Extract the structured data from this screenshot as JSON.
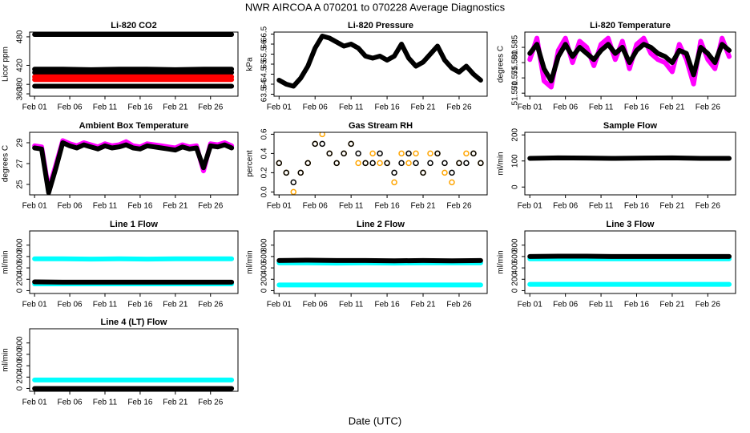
{
  "title": "NWR   AIRCOA A   070201 to 070228   Average Diagnostics",
  "x_label": "Date (UTC)",
  "chart_data": [
    {
      "type": "line",
      "title": "Li-820 CO2",
      "ylabel": "Licor ppm",
      "x": [
        1,
        5,
        9,
        13,
        17,
        21,
        25,
        29
      ],
      "xlim": [
        0.3,
        29.9
      ],
      "xticks": [
        {
          "value": 1,
          "label": "Feb 01"
        },
        {
          "value": 6,
          "label": "Feb 06"
        },
        {
          "value": 11,
          "label": "Feb 11"
        },
        {
          "value": 16,
          "label": "Feb 16"
        },
        {
          "value": 21,
          "label": "Feb 21"
        },
        {
          "value": 26,
          "label": "Feb 26"
        }
      ],
      "ylim": [
        355,
        490
      ],
      "yticks": [
        360,
        380,
        420,
        480
      ],
      "series": [
        {
          "color": "#000000",
          "values": [
            485,
            485,
            485,
            485,
            485,
            485,
            485,
            485
          ]
        },
        {
          "color": "#000000",
          "values": [
            412,
            412,
            411,
            412,
            412,
            411,
            412,
            412
          ]
        },
        {
          "color": "#000000",
          "values": [
            405,
            405,
            405,
            405,
            405,
            405,
            405,
            405
          ]
        },
        {
          "color": "#ff0000",
          "values": [
            396,
            396,
            396,
            396,
            396,
            396,
            396,
            396
          ]
        },
        {
          "color": "#ff0000",
          "values": [
            390,
            390,
            390,
            390,
            390,
            390,
            390,
            390
          ]
        },
        {
          "color": "#000000",
          "values": [
            376,
            376,
            376,
            376,
            376,
            376,
            376,
            376
          ]
        }
      ]
    },
    {
      "type": "line",
      "title": "Li-820 Pressure",
      "ylabel": "kPa",
      "x": [
        1,
        2,
        3,
        4,
        5,
        6,
        7,
        8,
        9,
        10,
        11,
        12,
        13,
        14,
        15,
        16,
        17,
        18,
        19,
        20,
        21,
        22,
        23,
        24,
        25,
        26,
        27,
        28,
        29
      ],
      "xlim": [
        0.3,
        29.9
      ],
      "xticks": [
        {
          "value": 1,
          "label": "Feb 01"
        },
        {
          "value": 6,
          "label": "Feb 06"
        },
        {
          "value": 11,
          "label": "Feb 11"
        },
        {
          "value": 16,
          "label": "Feb 16"
        },
        {
          "value": 21,
          "label": "Feb 21"
        },
        {
          "value": 26,
          "label": "Feb 26"
        }
      ],
      "ylim": [
        63.4,
        66.6
      ],
      "yticks": [
        63.5,
        64.0,
        64.5,
        65.0,
        65.5,
        66.0,
        66.5
      ],
      "series": [
        {
          "color": "#000000",
          "values": [
            64.2,
            64.0,
            63.9,
            64.3,
            64.9,
            65.8,
            66.4,
            66.3,
            66.1,
            65.9,
            66.0,
            65.8,
            65.4,
            65.3,
            65.4,
            65.2,
            65.4,
            66.0,
            65.3,
            64.9,
            65.1,
            65.5,
            65.9,
            65.2,
            64.8,
            64.6,
            64.9,
            64.5,
            64.2
          ]
        }
      ]
    },
    {
      "type": "line",
      "title": "Li-820 Temperature",
      "ylabel": "degrees C",
      "x": [
        1,
        2,
        3,
        4,
        5,
        6,
        7,
        8,
        9,
        10,
        11,
        12,
        13,
        14,
        15,
        16,
        17,
        18,
        19,
        20,
        21,
        22,
        23,
        24,
        25,
        26,
        27,
        28,
        29
      ],
      "xlim": [
        0.3,
        29.9
      ],
      "xticks": [
        {
          "value": 1,
          "label": "Feb 01"
        },
        {
          "value": 6,
          "label": "Feb 06"
        },
        {
          "value": 11,
          "label": "Feb 11"
        },
        {
          "value": 16,
          "label": "Feb 16"
        },
        {
          "value": 21,
          "label": "Feb 21"
        },
        {
          "value": 26,
          "label": "Feb 26"
        }
      ],
      "ylim": [
        51.569,
        51.59
      ],
      "yticks": [
        {
          "value": 51.57,
          "label": "51.570"
        },
        {
          "value": 51.575,
          "label": "51.575"
        },
        {
          "value": 51.58,
          "label": "51.580"
        },
        {
          "value": 51.585,
          "label": "51.585"
        }
      ],
      "series": [
        {
          "color": "#ff00ff",
          "values": [
            51.581,
            51.588,
            51.574,
            51.572,
            51.584,
            51.588,
            51.58,
            51.587,
            51.585,
            51.579,
            51.586,
            51.588,
            51.581,
            51.587,
            51.578,
            51.586,
            51.588,
            51.583,
            51.581,
            51.58,
            51.577,
            51.586,
            51.581,
            51.573,
            51.587,
            51.581,
            51.578,
            51.588,
            51.582
          ]
        },
        {
          "color": "#000000",
          "values": [
            51.583,
            51.586,
            51.578,
            51.574,
            51.582,
            51.586,
            51.582,
            51.585,
            51.583,
            51.581,
            51.584,
            51.586,
            51.583,
            51.585,
            51.58,
            51.584,
            51.586,
            51.585,
            51.583,
            51.582,
            51.58,
            51.584,
            51.583,
            51.576,
            51.585,
            51.583,
            51.58,
            51.586,
            51.584
          ]
        }
      ]
    },
    {
      "type": "line",
      "title": "Ambient Box Temperature",
      "ylabel": "degrees C",
      "x": [
        1,
        2,
        3,
        4,
        5,
        6,
        7,
        8,
        9,
        10,
        11,
        12,
        13,
        14,
        15,
        16,
        17,
        18,
        19,
        20,
        21,
        22,
        23,
        24,
        25,
        26,
        27,
        28,
        29
      ],
      "xlim": [
        0.3,
        29.9
      ],
      "xticks": [
        {
          "value": 1,
          "label": "Feb 01"
        },
        {
          "value": 6,
          "label": "Feb 06"
        },
        {
          "value": 11,
          "label": "Feb 11"
        },
        {
          "value": 16,
          "label": "Feb 16"
        },
        {
          "value": 21,
          "label": "Feb 21"
        },
        {
          "value": 26,
          "label": "Feb 26"
        }
      ],
      "ylim": [
        24,
        30
      ],
      "yticks": [
        25,
        27,
        29
      ],
      "series": [
        {
          "color": "#ff00ff",
          "values": [
            28.7,
            28.6,
            24.5,
            26.8,
            29.2,
            28.9,
            28.7,
            29.0,
            28.8,
            28.6,
            28.9,
            28.7,
            28.8,
            29.1,
            28.7,
            28.6,
            28.9,
            28.8,
            28.7,
            28.6,
            28.5,
            28.8,
            28.6,
            28.7,
            26.3,
            28.9,
            28.8,
            29.0,
            28.7
          ]
        },
        {
          "color": "#000000",
          "values": [
            28.5,
            28.4,
            24.2,
            26.5,
            29.0,
            28.7,
            28.5,
            28.8,
            28.6,
            28.4,
            28.7,
            28.5,
            28.6,
            28.8,
            28.5,
            28.4,
            28.7,
            28.6,
            28.5,
            28.4,
            28.3,
            28.6,
            28.4,
            28.5,
            26.6,
            28.7,
            28.6,
            28.8,
            28.5
          ]
        }
      ]
    },
    {
      "type": "scatter",
      "title": "Gas Stream RH",
      "ylabel": "percent",
      "x": [
        1,
        2,
        3,
        4,
        5,
        6,
        7,
        8,
        9,
        10,
        11,
        12,
        13,
        14,
        15,
        16,
        17,
        18,
        19,
        20,
        21,
        22,
        23,
        24,
        25,
        26,
        27,
        28,
        29
      ],
      "xlim": [
        0.3,
        29.9
      ],
      "xticks": [
        {
          "value": 1,
          "label": "Feb 01"
        },
        {
          "value": 6,
          "label": "Feb 06"
        },
        {
          "value": 11,
          "label": "Feb 11"
        },
        {
          "value": 16,
          "label": "Feb 16"
        },
        {
          "value": 21,
          "label": "Feb 21"
        },
        {
          "value": 26,
          "label": "Feb 26"
        }
      ],
      "ylim": [
        -0.03,
        0.62
      ],
      "yticks": [
        {
          "value": 0,
          "label": "0.0"
        },
        0.2,
        0.4,
        0.6
      ],
      "series": [
        {
          "color": "#ffa500",
          "values": [
            0.3,
            0.2,
            0.0,
            0.2,
            0.3,
            0.5,
            0.6,
            0.4,
            0.3,
            0.4,
            0.5,
            0.3,
            0.3,
            0.4,
            0.3,
            0.3,
            0.1,
            0.4,
            0.3,
            0.4,
            0.2,
            0.4,
            0.4,
            0.2,
            0.1,
            0.3,
            0.4,
            0.4,
            0.3
          ]
        },
        {
          "color": "#000000",
          "values": [
            0.3,
            0.2,
            0.1,
            0.2,
            0.3,
            0.5,
            0.5,
            0.4,
            0.3,
            0.4,
            0.5,
            0.4,
            0.3,
            0.3,
            0.4,
            0.3,
            0.2,
            0.3,
            0.4,
            0.3,
            0.2,
            0.3,
            0.4,
            0.3,
            0.2,
            0.3,
            0.3,
            0.4,
            0.3
          ]
        }
      ]
    },
    {
      "type": "line",
      "title": "Sample Flow",
      "ylabel": "ml/min",
      "x": [
        1,
        5,
        9,
        13,
        17,
        21,
        25,
        29
      ],
      "xlim": [
        0.3,
        29.9
      ],
      "xticks": [
        {
          "value": 1,
          "label": "Feb 01"
        },
        {
          "value": 6,
          "label": "Feb 06"
        },
        {
          "value": 11,
          "label": "Feb 11"
        },
        {
          "value": 16,
          "label": "Feb 16"
        },
        {
          "value": 21,
          "label": "Feb 21"
        },
        {
          "value": 26,
          "label": "Feb 26"
        }
      ],
      "ylim": [
        -30,
        210
      ],
      "yticks": [
        0,
        100,
        200
      ],
      "series": [
        {
          "color": "#000000",
          "values": [
            110,
            112,
            111,
            110,
            111,
            112,
            110,
            110
          ]
        }
      ]
    },
    {
      "type": "line",
      "title": "Line 1 Flow",
      "ylabel": "ml/min",
      "x": [
        1,
        5,
        9,
        13,
        17,
        21,
        25,
        29
      ],
      "xlim": [
        0.3,
        29.9
      ],
      "xticks": [
        {
          "value": 1,
          "label": "Feb 01"
        },
        {
          "value": 6,
          "label": "Feb 06"
        },
        {
          "value": 11,
          "label": "Feb 11"
        },
        {
          "value": 16,
          "label": "Feb 16"
        },
        {
          "value": 21,
          "label": "Feb 21"
        },
        {
          "value": 26,
          "label": "Feb 26"
        }
      ],
      "ylim": [
        -50,
        1050
      ],
      "yticks": [
        0,
        200,
        400,
        600,
        800
      ],
      "series": [
        {
          "color": "#00ffff",
          "values": [
            560,
            560,
            555,
            560,
            555,
            560,
            560,
            560
          ]
        },
        {
          "color": "#00ffff",
          "values": [
            120,
            120,
            120,
            120,
            120,
            120,
            120,
            120
          ]
        },
        {
          "color": "#000000",
          "values": [
            155,
            150,
            150,
            150,
            150,
            150,
            150,
            150
          ]
        }
      ]
    },
    {
      "type": "line",
      "title": "Line 2 Flow",
      "ylabel": "ml/min",
      "x": [
        1,
        5,
        9,
        13,
        17,
        21,
        25,
        29
      ],
      "xlim": [
        0.3,
        29.9
      ],
      "xticks": [
        {
          "value": 1,
          "label": "Feb 01"
        },
        {
          "value": 6,
          "label": "Feb 06"
        },
        {
          "value": 11,
          "label": "Feb 11"
        },
        {
          "value": 16,
          "label": "Feb 16"
        },
        {
          "value": 21,
          "label": "Feb 21"
        },
        {
          "value": 26,
          "label": "Feb 26"
        }
      ],
      "ylim": [
        -50,
        1050
      ],
      "yticks": [
        0,
        200,
        400,
        600,
        800
      ],
      "series": [
        {
          "color": "#00ffff",
          "values": [
            490,
            490,
            485,
            490,
            485,
            490,
            490,
            490
          ]
        },
        {
          "color": "#00ffff",
          "values": [
            100,
            100,
            100,
            100,
            100,
            100,
            100,
            100
          ]
        },
        {
          "color": "#000000",
          "values": [
            530,
            535,
            530,
            530,
            525,
            530,
            525,
            530
          ]
        }
      ]
    },
    {
      "type": "line",
      "title": "Line 3 Flow",
      "ylabel": "ml/min",
      "x": [
        1,
        5,
        9,
        13,
        17,
        21,
        25,
        29
      ],
      "xlim": [
        0.3,
        29.9
      ],
      "xticks": [
        {
          "value": 1,
          "label": "Feb 01"
        },
        {
          "value": 6,
          "label": "Feb 06"
        },
        {
          "value": 11,
          "label": "Feb 11"
        },
        {
          "value": 16,
          "label": "Feb 16"
        },
        {
          "value": 21,
          "label": "Feb 21"
        },
        {
          "value": 26,
          "label": "Feb 26"
        }
      ],
      "ylim": [
        -50,
        1050
      ],
      "yticks": [
        0,
        200,
        400,
        600,
        800
      ],
      "series": [
        {
          "color": "#00ffff",
          "values": [
            560,
            560,
            560,
            560,
            560,
            560,
            560,
            560
          ]
        },
        {
          "color": "#00ffff",
          "values": [
            110,
            110,
            110,
            110,
            110,
            110,
            110,
            110
          ]
        },
        {
          "color": "#000000",
          "values": [
            600,
            605,
            605,
            600,
            600,
            600,
            600,
            600
          ]
        }
      ]
    },
    {
      "type": "line",
      "title": "Line 4 (LT) Flow",
      "ylabel": "ml/min",
      "x": [
        1,
        5,
        9,
        13,
        17,
        21,
        25,
        29
      ],
      "xlim": [
        0.3,
        29.9
      ],
      "xticks": [
        {
          "value": 1,
          "label": "Feb 01"
        },
        {
          "value": 6,
          "label": "Feb 06"
        },
        {
          "value": 11,
          "label": "Feb 11"
        },
        {
          "value": 16,
          "label": "Feb 16"
        },
        {
          "value": 21,
          "label": "Feb 21"
        },
        {
          "value": 26,
          "label": "Feb 26"
        }
      ],
      "ylim": [
        -50,
        1050
      ],
      "yticks": [
        0,
        200,
        400,
        600,
        800
      ],
      "series": [
        {
          "color": "#00ffff",
          "values": [
            150,
            150,
            150,
            150,
            150,
            150,
            150,
            150
          ]
        },
        {
          "color": "#000000",
          "values": [
            0,
            0,
            0,
            0,
            0,
            0,
            0,
            0
          ]
        }
      ]
    }
  ]
}
